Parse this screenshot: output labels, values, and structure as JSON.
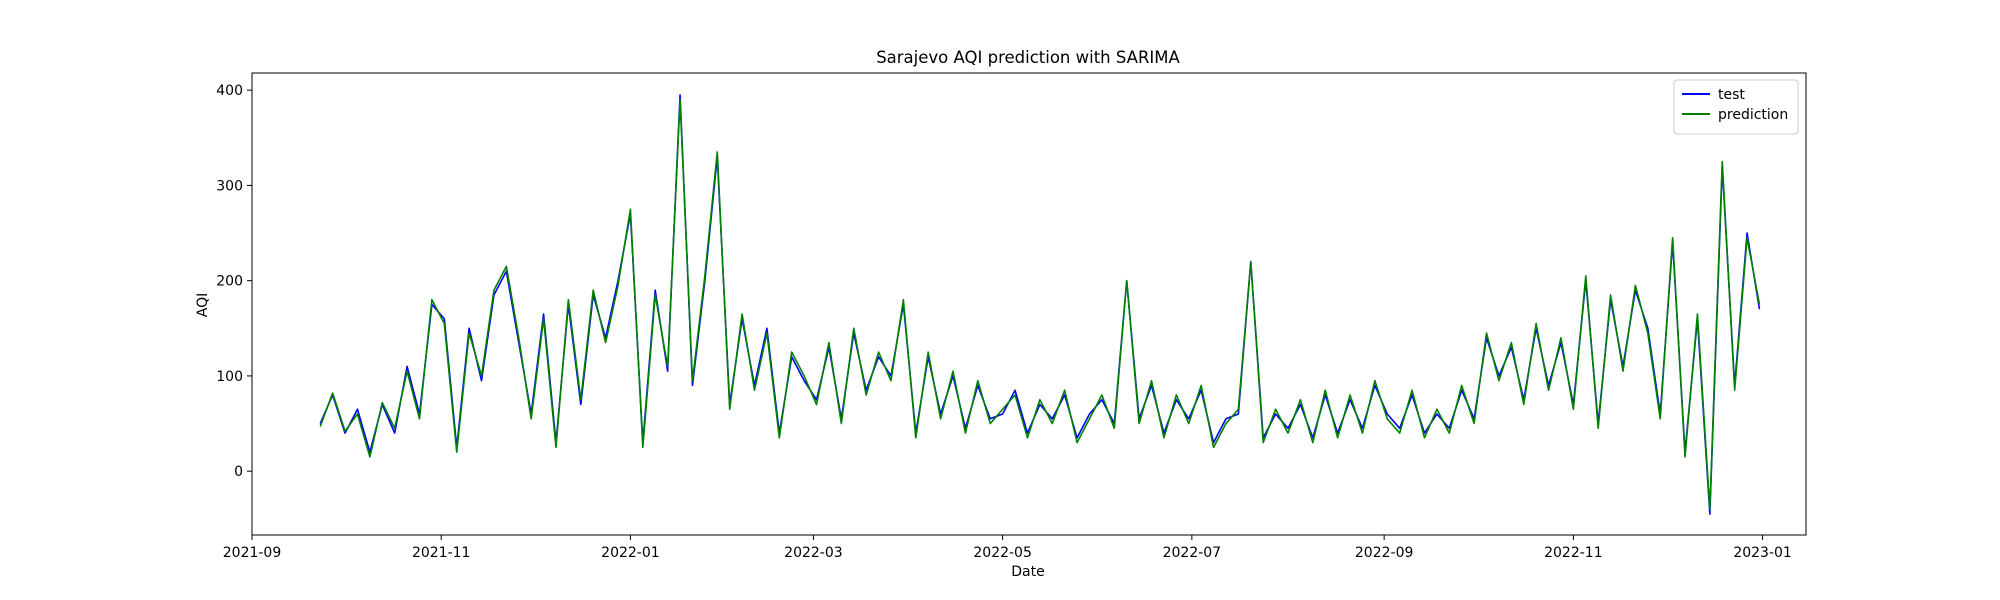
{
  "chart_data": {
    "type": "line",
    "title": "Sarajevo AQI prediction with SARIMA",
    "xlabel": "Date",
    "ylabel": "AQI",
    "xlim": [
      "2021-09-01",
      "2023-01-15"
    ],
    "ylim": [
      -67,
      418
    ],
    "grid": false,
    "legend_position": "top-right",
    "x_ticks": [
      "2021-09",
      "2021-11",
      "2022-01",
      "2022-03",
      "2022-05",
      "2022-07",
      "2022-09",
      "2022-11",
      "2023-01"
    ],
    "y_ticks": [
      0,
      100,
      200,
      300,
      400
    ],
    "x": [
      "2021-09-23",
      "2021-09-27",
      "2021-10-01",
      "2021-10-05",
      "2021-10-09",
      "2021-10-13",
      "2021-10-17",
      "2021-10-21",
      "2021-10-25",
      "2021-10-29",
      "2021-11-02",
      "2021-11-06",
      "2021-11-10",
      "2021-11-14",
      "2021-11-18",
      "2021-11-22",
      "2021-11-26",
      "2021-11-30",
      "2021-12-04",
      "2021-12-08",
      "2021-12-12",
      "2021-12-16",
      "2021-12-20",
      "2021-12-24",
      "2021-12-28",
      "2022-01-01",
      "2022-01-05",
      "2022-01-09",
      "2022-01-13",
      "2022-01-17",
      "2022-01-21",
      "2022-01-25",
      "2022-01-29",
      "2022-02-02",
      "2022-02-06",
      "2022-02-10",
      "2022-02-14",
      "2022-02-18",
      "2022-02-22",
      "2022-02-26",
      "2022-03-02",
      "2022-03-06",
      "2022-03-10",
      "2022-03-14",
      "2022-03-18",
      "2022-03-22",
      "2022-03-26",
      "2022-03-30",
      "2022-04-03",
      "2022-04-07",
      "2022-04-11",
      "2022-04-15",
      "2022-04-19",
      "2022-04-23",
      "2022-04-27",
      "2022-05-01",
      "2022-05-05",
      "2022-05-09",
      "2022-05-13",
      "2022-05-17",
      "2022-05-21",
      "2022-05-25",
      "2022-05-29",
      "2022-06-02",
      "2022-06-06",
      "2022-06-10",
      "2022-06-14",
      "2022-06-18",
      "2022-06-22",
      "2022-06-26",
      "2022-06-30",
      "2022-07-04",
      "2022-07-08",
      "2022-07-12",
      "2022-07-16",
      "2022-07-20",
      "2022-07-24",
      "2022-07-28",
      "2022-08-01",
      "2022-08-05",
      "2022-08-09",
      "2022-08-13",
      "2022-08-17",
      "2022-08-21",
      "2022-08-25",
      "2022-08-29",
      "2022-09-02",
      "2022-09-06",
      "2022-09-10",
      "2022-09-14",
      "2022-09-18",
      "2022-09-22",
      "2022-09-26",
      "2022-09-30",
      "2022-10-04",
      "2022-10-08",
      "2022-10-12",
      "2022-10-16",
      "2022-10-20",
      "2022-10-24",
      "2022-10-28",
      "2022-11-01",
      "2022-11-05",
      "2022-11-09",
      "2022-11-13",
      "2022-11-17",
      "2022-11-21",
      "2022-11-25",
      "2022-11-29",
      "2022-12-03",
      "2022-12-07",
      "2022-12-11",
      "2022-12-15",
      "2022-12-19",
      "2022-12-23",
      "2022-12-27",
      "2022-12-31"
    ],
    "series": [
      {
        "name": "test",
        "color": "#0000ff",
        "values": [
          50,
          80,
          40,
          65,
          20,
          70,
          40,
          110,
          60,
          175,
          160,
          25,
          150,
          95,
          185,
          210,
          135,
          60,
          165,
          30,
          175,
          70,
          185,
          140,
          200,
          270,
          30,
          190,
          105,
          395,
          90,
          200,
          330,
          70,
          160,
          90,
          150,
          40,
          120,
          95,
          75,
          130,
          55,
          145,
          85,
          120,
          100,
          175,
          40,
          120,
          60,
          100,
          45,
          90,
          55,
          60,
          85,
          40,
          70,
          55,
          80,
          35,
          60,
          75,
          50,
          200,
          55,
          90,
          40,
          75,
          55,
          85,
          30,
          55,
          60,
          220,
          35,
          60,
          45,
          70,
          35,
          80,
          40,
          75,
          45,
          90,
          60,
          45,
          80,
          40,
          60,
          45,
          85,
          55,
          140,
          100,
          130,
          75,
          150,
          90,
          135,
          70,
          200,
          50,
          180,
          110,
          190,
          150,
          60,
          240,
          20,
          160,
          -45,
          320,
          90,
          250,
          170
        ]
      },
      {
        "name": "prediction",
        "color": "#008000",
        "values": [
          47,
          82,
          42,
          60,
          15,
          72,
          45,
          105,
          55,
          180,
          155,
          20,
          145,
          100,
          190,
          215,
          140,
          55,
          160,
          25,
          180,
          75,
          190,
          135,
          195,
          275,
          25,
          185,
          110,
          390,
          95,
          205,
          335,
          65,
          165,
          85,
          145,
          35,
          125,
          100,
          70,
          135,
          50,
          150,
          80,
          125,
          95,
          180,
          35,
          125,
          55,
          105,
          40,
          95,
          50,
          65,
          80,
          35,
          75,
          50,
          85,
          30,
          55,
          80,
          45,
          200,
          50,
          95,
          35,
          80,
          50,
          90,
          25,
          50,
          65,
          220,
          30,
          65,
          40,
          75,
          30,
          85,
          35,
          80,
          40,
          95,
          55,
          40,
          85,
          35,
          65,
          40,
          90,
          50,
          145,
          95,
          135,
          70,
          155,
          85,
          140,
          65,
          205,
          45,
          185,
          105,
          195,
          145,
          55,
          245,
          15,
          165,
          -40,
          325,
          85,
          245,
          175
        ]
      }
    ]
  }
}
